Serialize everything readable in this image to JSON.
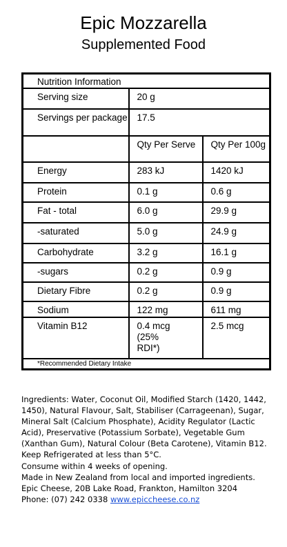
{
  "header": {
    "title": "Epic Mozzarella",
    "subtitle": "Supplemented Food"
  },
  "nutrition": {
    "heading": "Nutrition Information",
    "serving_size_label": "Serving size",
    "serving_size_value": "20 g",
    "servings_label": "Servings per package",
    "servings_value": "17.5",
    "col_serve": "Qty Per Serve",
    "col_100g": "Qty Per 100g",
    "rows": [
      {
        "name": "Energy",
        "serve": "283  kJ",
        "per100": "1420 kJ"
      },
      {
        "name": "Protein",
        "serve": "0.1 g",
        "per100": "0.6  g"
      },
      {
        "name": "Fat - total",
        "serve": "6.0  g",
        "per100": "29.9 g"
      },
      {
        "name": "-saturated",
        "serve": "5.0 g",
        "per100": "24.9 g"
      },
      {
        "name": "Carbohydrate",
        "serve": "3.2 g",
        "per100": "16.1 g"
      },
      {
        "name": "-sugars",
        "serve": "0.2 g",
        "per100": "0.9 g"
      },
      {
        "name": "Dietary Fibre",
        "serve": "0.2 g",
        "per100": "0.9  g"
      },
      {
        "name": "Sodium",
        "serve": "122  mg",
        "per100": "611 mg"
      },
      {
        "name": "Vitamin B12",
        "serve": "0.4 mcg (25% RDI*)",
        "per100": "2.5 mcg"
      }
    ],
    "footnote": "*Recommended Dietary Intake"
  },
  "info": {
    "ingredients": "Ingredients: Water, Coconut Oil, Modified Starch (1420, 1442, 1450), Natural Flavour, Salt, Stabiliser (Carrageenan), Sugar, Mineral Salt (Calcium Phosphate), Acidity Regulator (Lactic Acid), Preservative (Potassium Sorbate), Vegetable Gum (Xanthan Gum), Natural Colour (Beta Carotene), Vitamin B12.",
    "storage": "Keep Refrigerated at less than 5°C.",
    "consume": "Consume within 4 weeks of opening.",
    "origin": "Made in New Zealand from local and imported ingredients.",
    "address": "Epic Cheese, 20B Lake Road, Frankton, Hamilton 3204",
    "phone_label": "Phone: (07) 242 0338",
    "website": "www.epiccheese.co.nz"
  }
}
